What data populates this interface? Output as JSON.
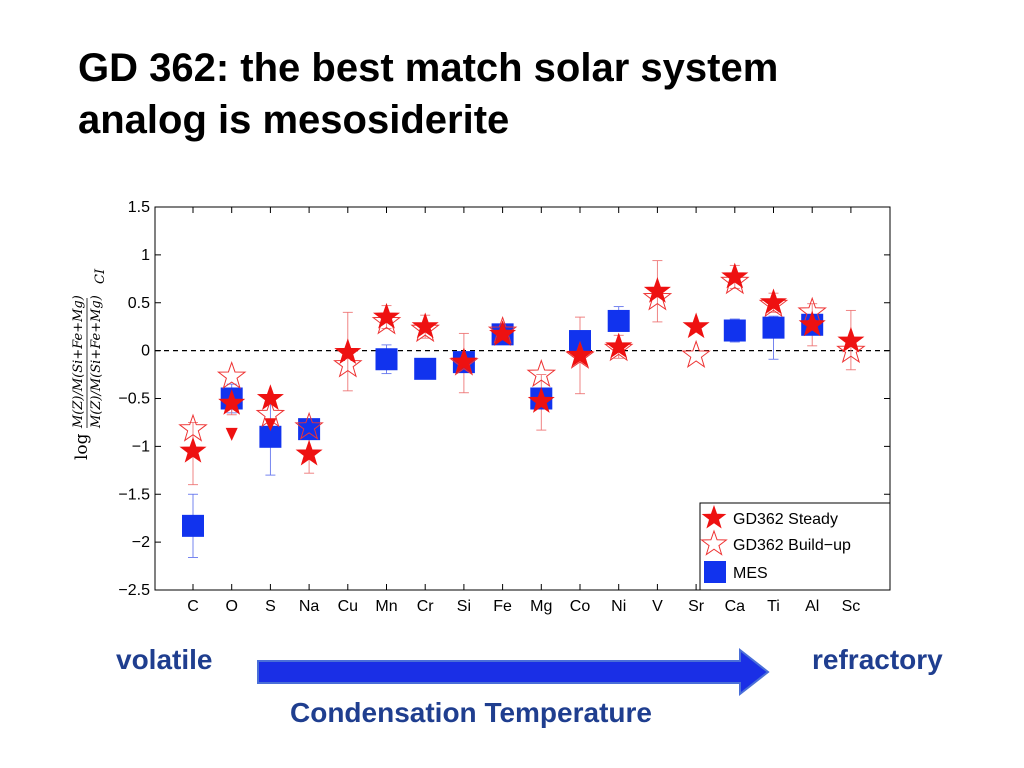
{
  "slide": {
    "title_line1": "GD 362: the best match solar system",
    "title_line2": "analog is mesosiderite",
    "volatile_label": "volatile",
    "refractory_label": "refractory",
    "arrow_label": "Condensation Temperature",
    "arrow_color": "#1a2fe6"
  },
  "chart_data": {
    "type": "scatter",
    "title": "",
    "xlabel": "",
    "ylabel_log": "log",
    "ylabel_numerator": "M(Z)/M(Si+Fe+Mg)",
    "ylabel_denominator": "M(Z)/M(Si+Fe+Mg)",
    "ylabel_subscript": "CI",
    "ylim": [
      -2.5,
      1.5
    ],
    "yticks": [
      -2.5,
      -2,
      -1.5,
      -1,
      -0.5,
      0,
      0.5,
      1,
      1.5
    ],
    "ytick_labels": [
      "−2.5",
      "−2",
      "−1.5",
      "−1",
      "−0.5",
      "0",
      "0.5",
      "1",
      "1.5"
    ],
    "categories": [
      "C",
      "O",
      "S",
      "Na",
      "Cu",
      "Mn",
      "Cr",
      "Si",
      "Fe",
      "Mg",
      "Co",
      "Ni",
      "V",
      "Sr",
      "Ca",
      "Ti",
      "Al",
      "Sc"
    ],
    "reference_line": 0,
    "legend_position": "bottom-right",
    "series": [
      {
        "name": "GD362 Steady",
        "marker": "filled-star",
        "color": "#ee1111",
        "values": [
          -1.05,
          -0.55,
          -0.5,
          -1.08,
          -0.02,
          0.35,
          0.25,
          -0.12,
          0.17,
          -0.53,
          -0.05,
          0.04,
          0.62,
          0.25,
          0.77,
          0.5,
          0.27,
          0.1
        ],
        "err_low": [
          0.35,
          0.12,
          null,
          0.2,
          0.4,
          0.12,
          0.12,
          0.32,
          0.1,
          0.3,
          0.4,
          0.12,
          0.32,
          null,
          0.12,
          0.1,
          0.22,
          0.3
        ],
        "err_high": [
          0.3,
          0.12,
          null,
          0.2,
          0.42,
          0.12,
          0.12,
          0.3,
          0.1,
          0.28,
          0.4,
          0.12,
          0.32,
          null,
          0.12,
          0.1,
          0.22,
          0.32
        ],
        "upper_limits": [
          null,
          -0.88,
          -0.78,
          null,
          null,
          null,
          null,
          null,
          null,
          null,
          null,
          null,
          null,
          null,
          null,
          null,
          null,
          null
        ]
      },
      {
        "name": "GD362 Build−up",
        "marker": "open-star",
        "color": "#ee3333",
        "values": [
          -0.82,
          -0.27,
          -0.67,
          -0.8,
          -0.15,
          0.3,
          0.22,
          -0.13,
          0.2,
          -0.25,
          -0.06,
          0.02,
          0.55,
          -0.05,
          0.72,
          0.48,
          0.4,
          0.0
        ],
        "err_low": [
          null,
          null,
          null,
          null,
          null,
          null,
          null,
          null,
          null,
          null,
          null,
          null,
          null,
          null,
          null,
          null,
          null,
          null
        ],
        "err_high": [
          null,
          null,
          null,
          null,
          null,
          null,
          null,
          null,
          null,
          null,
          null,
          null,
          null,
          null,
          null,
          null,
          null,
          null
        ]
      },
      {
        "name": "MES",
        "marker": "filled-square",
        "color": "#1133ee",
        "values": [
          -1.83,
          -0.5,
          -0.9,
          -0.82,
          null,
          -0.09,
          -0.19,
          -0.12,
          0.17,
          -0.5,
          0.1,
          0.31,
          null,
          null,
          0.21,
          0.24,
          0.27,
          null
        ],
        "err_low": [
          0.33,
          0.15,
          0.4,
          0.08,
          null,
          0.15,
          0.05,
          0.05,
          0.05,
          0.1,
          0.05,
          0.05,
          null,
          null,
          0.12,
          0.33,
          0.05,
          null
        ],
        "err_high": [
          0.33,
          0.15,
          0.4,
          0.08,
          null,
          0.15,
          0.05,
          0.05,
          0.05,
          0.1,
          0.05,
          0.15,
          null,
          null,
          0.12,
          0.12,
          0.05,
          null
        ]
      }
    ]
  }
}
